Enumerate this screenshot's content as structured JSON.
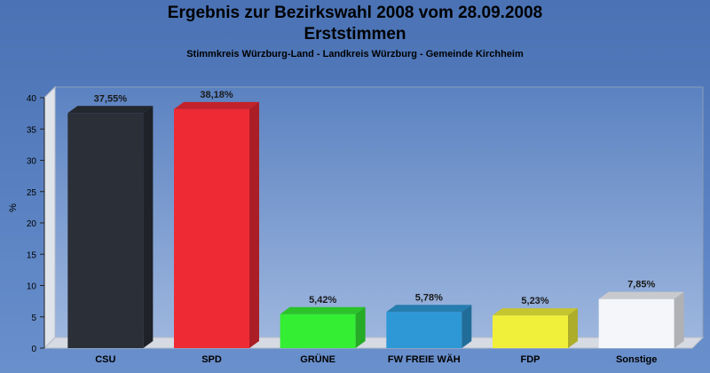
{
  "chart_data": {
    "type": "bar",
    "title": "Ergebnis zur Bezirkswahl 2008 vom 28.09.2008",
    "subtitle": "Erststimmen",
    "caption": "Stimmkreis Würzburg-Land - Landkreis Würzburg - Gemeinde Kirchheim",
    "ylabel": "%",
    "ylim": [
      0,
      40
    ],
    "yticks": [
      0,
      5,
      10,
      15,
      20,
      25,
      30,
      35,
      40
    ],
    "grid": false,
    "categories": [
      "CSU",
      "SPD",
      "GRÜNE",
      "FW FREIE WÄH",
      "FDP",
      "Sonstige"
    ],
    "values": [
      37.55,
      38.18,
      5.42,
      5.78,
      5.23,
      7.85
    ],
    "value_labels": [
      "37,55%",
      "38,18%",
      "5,42%",
      "5,78%",
      "5,23%",
      "7,85%"
    ],
    "colors": [
      "#2b2f38",
      "#ee2a35",
      "#33ee33",
      "#2e98d6",
      "#f0f03a",
      "#f4f6fa"
    ]
  }
}
